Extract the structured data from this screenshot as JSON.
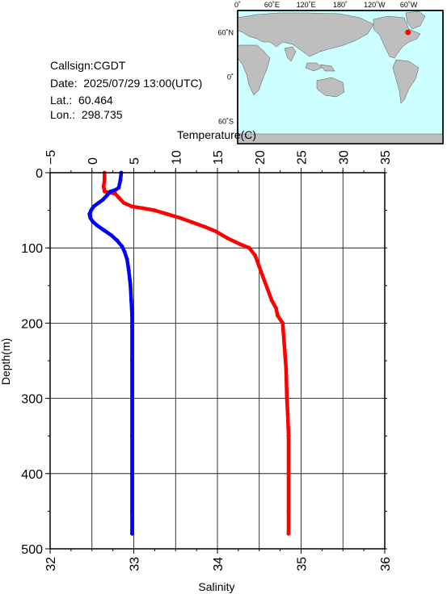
{
  "station": {
    "callsign": "Callsign:CGDT",
    "date": "Date:  2025/07/29 13:00(UTC)",
    "lat": "Lat.:  60.464",
    "lon": "Lon.:  298.735"
  },
  "map": {
    "top_labels": [
      "0˚",
      "60˚E",
      "120˚E",
      "180˚",
      "120˚W",
      "60˚W"
    ],
    "left_labels": [
      "60˚N",
      "0˚",
      "60˚S"
    ],
    "station_marker": {
      "lon": -61.265,
      "lat": 60.464,
      "color": "#ff0000"
    },
    "ocean_color": "#ccffff",
    "land_color": "#bebebe"
  },
  "chart_data": {
    "type": "line",
    "ylabel": "Depth(m)",
    "ylim": [
      0,
      500
    ],
    "y_inverted": true,
    "y_ticks": [
      "0",
      "100",
      "200",
      "300",
      "400",
      "500"
    ],
    "top_axis": {
      "label": "Temperature(C)",
      "lim": [
        -5,
        35
      ],
      "ticks": [
        "−5",
        "0",
        "5",
        "10",
        "15",
        "20",
        "25",
        "30",
        "35"
      ]
    },
    "bottom_axis": {
      "label": "Salinity",
      "lim": [
        32,
        36
      ],
      "ticks": [
        "32",
        "33",
        "34",
        "35",
        "36"
      ]
    },
    "grid": true,
    "series": [
      {
        "axis": "bottom",
        "color": "#ff0000",
        "points": [
          [
            32.65,
            0
          ],
          [
            32.65,
            10
          ],
          [
            32.64,
            18
          ],
          [
            32.65,
            25
          ],
          [
            32.78,
            28
          ],
          [
            32.82,
            33
          ],
          [
            32.88,
            40
          ],
          [
            32.98,
            45
          ],
          [
            33.1,
            47
          ],
          [
            33.25,
            50
          ],
          [
            33.4,
            55
          ],
          [
            33.55,
            60
          ],
          [
            33.7,
            66
          ],
          [
            33.85,
            72
          ],
          [
            33.98,
            78
          ],
          [
            34.12,
            87
          ],
          [
            34.27,
            95
          ],
          [
            34.38,
            100
          ],
          [
            34.45,
            110
          ],
          [
            34.5,
            125
          ],
          [
            34.55,
            140
          ],
          [
            34.6,
            155
          ],
          [
            34.65,
            170
          ],
          [
            34.7,
            180
          ],
          [
            34.72,
            190
          ],
          [
            34.78,
            200
          ],
          [
            34.8,
            230
          ],
          [
            34.82,
            260
          ],
          [
            34.83,
            300
          ],
          [
            34.84,
            320
          ],
          [
            34.85,
            350
          ],
          [
            34.85,
            400
          ],
          [
            34.85,
            450
          ],
          [
            34.85,
            480
          ]
        ]
      },
      {
        "axis": "top",
        "color": "#0000ff",
        "points": [
          [
            3.5,
            0
          ],
          [
            3.4,
            10
          ],
          [
            3.2,
            20
          ],
          [
            2.8,
            23
          ],
          [
            2.2,
            25
          ],
          [
            1.8,
            30
          ],
          [
            1.3,
            36
          ],
          [
            0.8,
            40
          ],
          [
            0.2,
            45
          ],
          [
            -0.1,
            50
          ],
          [
            -0.3,
            55
          ],
          [
            -0.2,
            60
          ],
          [
            0.1,
            65
          ],
          [
            0.6,
            70
          ],
          [
            1.5,
            77
          ],
          [
            2.3,
            83
          ],
          [
            3.0,
            90
          ],
          [
            3.6,
            98
          ],
          [
            3.9,
            105
          ],
          [
            4.2,
            115
          ],
          [
            4.4,
            130
          ],
          [
            4.6,
            150
          ],
          [
            4.7,
            170
          ],
          [
            4.8,
            190
          ],
          [
            4.8,
            250
          ],
          [
            4.8,
            300
          ],
          [
            4.8,
            350
          ],
          [
            4.8,
            400
          ],
          [
            4.8,
            450
          ],
          [
            4.8,
            480
          ]
        ]
      }
    ]
  }
}
